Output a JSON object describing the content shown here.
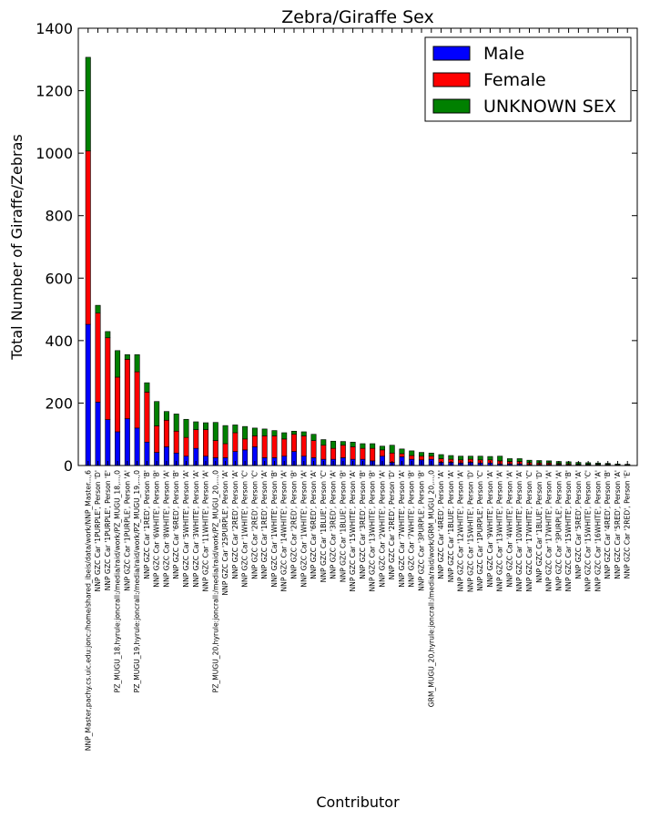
{
  "chart_data": {
    "type": "bar",
    "stacked": true,
    "title": "Zebra/Giraffe Sex",
    "xlabel": "Contributor",
    "ylabel": "Total Number of Giraffe/Zebras",
    "ylim": [
      0,
      1400
    ],
    "yticks": [
      0,
      200,
      400,
      600,
      800,
      1000,
      1200,
      1400
    ],
    "grid": false,
    "legend_position": "top-right",
    "categories": [
      "NNP_Master,pachy.cs.uic.edu:jonc:/home/shared_ibeis/data/work/NNP_Master...,6",
      "NNP GZC Car '1PURPLE', Person 'D'",
      "NNP GZC Car '1PURPLE', Person 'E'",
      "PZ_MUGU_18,hyrule:joncrall:/media/raid/work/PZ_MUGU_18,...,0",
      "NNP GZC Car '1PURPLE', Person 'A'",
      "PZ_MUGU_19,hyrule:joncrall:/media/raid/work/PZ_MUGU_19,...,0",
      "NNP GZC Car '1RED', Person 'B'",
      "NNP GZC Car '6WHITE', Person 'B'",
      "NNP GZC Car '8WHITE', Person 'A'",
      "NNP GZC Car '6RED', Person 'B'",
      "NNP GZC Car '5WHITE', Person 'A'",
      "NNP GZC Car '3WHITE', Person 'A'",
      "NNP GZC Car '11WHITE', Person 'A'",
      "PZ_MUGU_20,hyrule:joncrall:/media/raid/work/PZ_MUGU_20,...,0",
      "NNP GZC Car '25PURPLE', Person 'A'",
      "NNP GZC Car '2RED', Person 'A'",
      "NNP GZC Car '1WHITE', Person 'C'",
      "NNP GZC Car '2RED', Person 'C'",
      "NNP GZC Car '1RED', Person 'A'",
      "NNP GZC Car '1WHITE', Person 'B'",
      "NNP GZC Car '14WHITE', Person 'A'",
      "NNP GZC Car '2RED', Person 'B'",
      "NNP GZC Car '1WHITE', Person 'A'",
      "NNP GZC Car '6RED', Person 'A'",
      "NNP GZC Car '1BLUE', Person 'C'",
      "NNP GZC Car '3RED', Person 'A'",
      "NNP GZC Car '1BLUE', Person 'B'",
      "NNP GZC Car '15WHITE', Person 'A'",
      "NNP GZC Car '3RED', Person 'B'",
      "NNP GZC Car '13WHITE', Person 'B'",
      "NNP GZC Car '2WHITE', Person 'A'",
      "NNP GZC Car '2RED', Person 'D'",
      "NNP GZC Car '7WHITE', Person 'A'",
      "NNP GZC Car '7WHITE', Person 'B'",
      "NNP GZC Car '3PURPLE', Person 'B'",
      "GRM_MUGU_20,hyrule:joncrall:/media/raid/work/GRM_MUGU_20,...,0",
      "NNP GZC Car '4RED', Person 'A'",
      "NNP GZC Car '1BLUE', Person 'A'",
      "NNP GZC Car '12WHITE', Person 'A'",
      "NNP GZC Car '15WHITE', Person 'D'",
      "NNP GZC Car '1PURPLE', Person 'C'",
      "NNP GZC Car '9WHITE', Person 'A'",
      "NNP GZC Car '13WHITE', Person 'A'",
      "NNP GZC Car '4WHITE', Person 'A'",
      "NNP GZC Car '10WHITE', Person 'A'",
      "NNP GZC Car '17WHITE', Person 'C'",
      "NNP GZC Car '1BLUE', Person 'D'",
      "NNP GZC Car '17WHITE', Person 'A'",
      "NNP GZC Car '3PURPLE', Person 'A'",
      "NNP GZC Car '15WHITE', Person 'B'",
      "NNP GZC Car '5RED', Person 'A'",
      "NNP GZC Car '15WHITE', Person 'C'",
      "NNP GZC Car '16WHITE', Person 'A'",
      "NNP GZC Car '4RED', Person 'B'",
      "NNP GZC Car '5RED', Person 'A'",
      "NNP GZC Car '2RED', Person 'E'"
    ],
    "series": [
      {
        "name": "Male",
        "color": "#0000ff",
        "values": [
          452,
          203,
          147,
          108,
          150,
          120,
          75,
          42,
          60,
          40,
          30,
          55,
          30,
          25,
          25,
          45,
          50,
          60,
          25,
          25,
          30,
          45,
          30,
          25,
          20,
          20,
          25,
          20,
          20,
          15,
          30,
          10,
          28,
          20,
          18,
          20,
          10,
          10,
          8,
          10,
          8,
          8,
          5,
          5,
          5,
          3,
          3,
          3,
          3,
          2,
          2,
          2,
          2,
          2,
          1,
          1
        ]
      },
      {
        "name": "Female",
        "color": "#ff0000",
        "values": [
          555,
          285,
          262,
          175,
          190,
          180,
          160,
          85,
          85,
          70,
          60,
          60,
          85,
          55,
          45,
          60,
          35,
          35,
          70,
          70,
          55,
          55,
          65,
          55,
          45,
          35,
          40,
          40,
          35,
          40,
          20,
          30,
          10,
          12,
          12,
          10,
          12,
          10,
          10,
          10,
          10,
          10,
          10,
          8,
          8,
          6,
          5,
          5,
          3,
          3,
          2,
          2,
          2,
          2,
          1,
          1
        ]
      },
      {
        "name": "UNKNOWN SEX",
        "color": "#008000",
        "values": [
          300,
          25,
          20,
          85,
          15,
          55,
          30,
          78,
          28,
          55,
          58,
          25,
          22,
          58,
          58,
          25,
          40,
          25,
          22,
          17,
          20,
          10,
          13,
          20,
          18,
          23,
          12,
          15,
          15,
          15,
          12,
          25,
          15,
          15,
          12,
          10,
          13,
          12,
          12,
          10,
          12,
          11,
          15,
          9,
          9,
          8,
          8,
          7,
          7,
          7,
          6,
          5,
          4,
          3,
          3,
          2
        ]
      }
    ]
  }
}
